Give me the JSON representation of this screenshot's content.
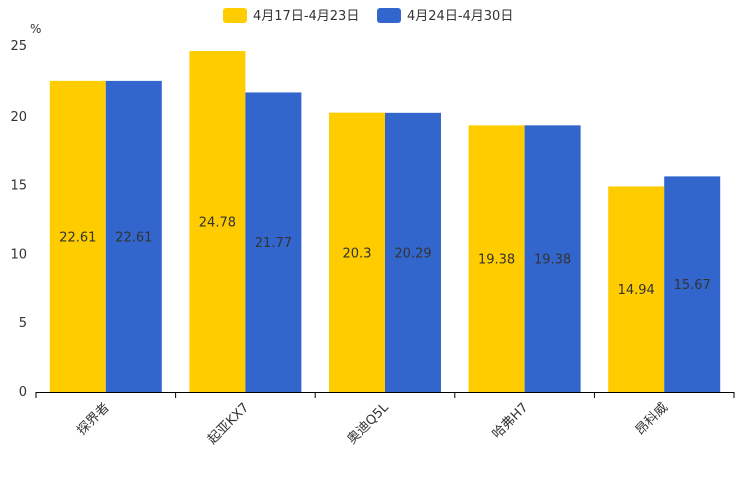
{
  "chart_data": {
    "type": "bar",
    "title": "",
    "xlabel": "",
    "ylabel": "",
    "unit": "%",
    "ylim": [
      0,
      25
    ],
    "yticks": [
      "0",
      "5",
      "10",
      "15",
      "20",
      "25"
    ],
    "categories": [
      "探界者",
      "起亚KX7",
      "奥迪Q5L",
      "哈弗H7",
      "昂科威"
    ],
    "series": [
      {
        "name": "4月17日-4月23日",
        "color": "#ffcc00",
        "values": [
          22.61,
          24.78,
          20.3,
          19.38,
          14.94
        ],
        "labels": [
          "22.61",
          "24.78",
          "20.3",
          "19.38",
          "14.94"
        ]
      },
      {
        "name": "4月24日-4月30日",
        "color": "#3366cc",
        "values": [
          22.61,
          21.77,
          20.29,
          19.38,
          15.67
        ],
        "labels": [
          "22.61",
          "21.77",
          "20.29",
          "19.38",
          "15.67"
        ]
      }
    ],
    "legend_position": "top-center",
    "grid": false
  }
}
